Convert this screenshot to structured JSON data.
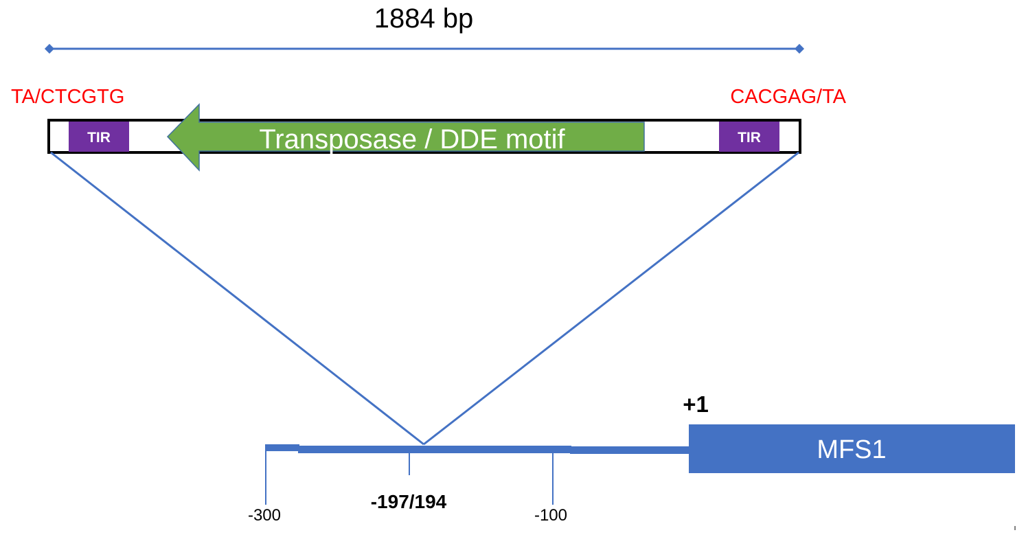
{
  "length_label": "1884 bp",
  "left_site": "TA/CTCGTG",
  "right_site": "CACGAG/TA",
  "tir_left": "TIR",
  "tir_right": "TIR",
  "transposase_label": "Transposase / DDE motif",
  "plus_one": "+1",
  "gene_label": "MFS1",
  "ticks": {
    "t300": "-300",
    "t197": "-197/194",
    "t100": "-100"
  },
  "colors": {
    "line": "#4472c4",
    "site_text": "#ff0000",
    "tir_fill": "#7030a0",
    "transposase_fill": "#70ad47",
    "gene_fill": "#4472c4",
    "element_border": "#000000"
  }
}
